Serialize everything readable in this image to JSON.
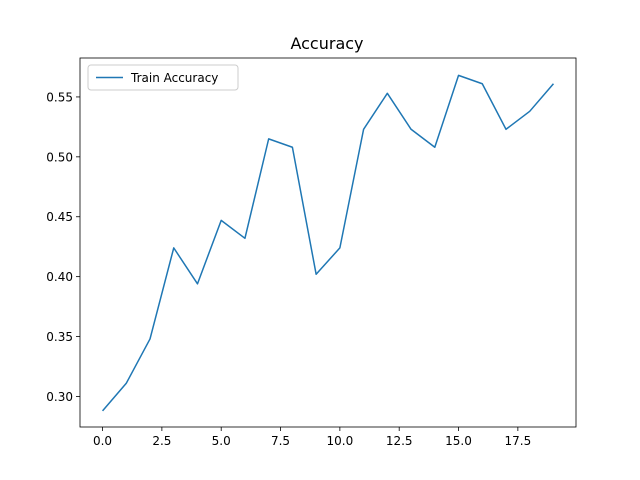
{
  "chart_data": {
    "type": "line",
    "title": "Accuracy",
    "xlabel": "",
    "ylabel": "",
    "xlim": [
      -0.95,
      19.95
    ],
    "ylim": [
      0.2745,
      0.5825
    ],
    "xticks": [
      0.0,
      2.5,
      5.0,
      7.5,
      10.0,
      12.5,
      15.0,
      17.5
    ],
    "xtick_labels": [
      "0.0",
      "2.5",
      "5.0",
      "7.5",
      "10.0",
      "12.5",
      "15.0",
      "17.5"
    ],
    "yticks": [
      0.3,
      0.35,
      0.4,
      0.45,
      0.5,
      0.55
    ],
    "ytick_labels": [
      "0.30",
      "0.35",
      "0.40",
      "0.45",
      "0.50",
      "0.55"
    ],
    "grid": false,
    "legend_position": "top-left",
    "series": [
      {
        "name": "Train Accuracy",
        "color": "#1f77b4",
        "x": [
          0,
          1,
          2,
          3,
          4,
          5,
          6,
          7,
          8,
          9,
          10,
          11,
          12,
          13,
          14,
          15,
          16,
          17,
          18,
          19
        ],
        "values": [
          0.288,
          0.311,
          0.348,
          0.424,
          0.394,
          0.447,
          0.432,
          0.515,
          0.508,
          0.402,
          0.424,
          0.523,
          0.553,
          0.523,
          0.508,
          0.568,
          0.561,
          0.523,
          0.538,
          0.561
        ]
      }
    ]
  }
}
